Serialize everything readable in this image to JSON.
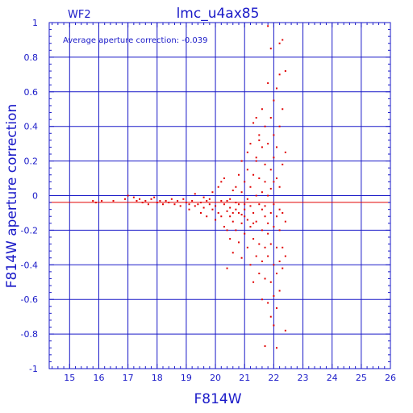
{
  "chart_data": {
    "type": "scatter",
    "title": "lmc_u4ax85",
    "corner_label": "WF2",
    "annotation": "Average aperture correction: -0.039",
    "xlabel": "F814W",
    "ylabel": "F814W aperture correction",
    "xlim": [
      14.3,
      26
    ],
    "ylim": [
      -1,
      1
    ],
    "xticks": [
      15,
      16,
      17,
      18,
      19,
      20,
      21,
      22,
      23,
      24,
      25,
      26
    ],
    "yticks": [
      -1,
      -0.8,
      -0.6,
      -0.4,
      -0.2,
      0,
      0.2,
      0.4,
      0.6,
      0.8,
      1
    ],
    "ytick_labels": [
      "-1",
      "-0.8",
      "-0.6",
      "-0.4",
      "-0.2",
      "0",
      "0.2",
      "0.4",
      "0.6",
      "0.8",
      "1"
    ],
    "grid": true,
    "reference_lines": [
      {
        "y": 0,
        "color": "#1a1ac8"
      },
      {
        "y": -0.039,
        "color": "#e00000"
      }
    ],
    "colors": {
      "axes": "#1a1ac8",
      "points": "#e00000"
    },
    "points": [
      [
        15.8,
        -0.03
      ],
      [
        15.9,
        -0.04
      ],
      [
        16.1,
        -0.03
      ],
      [
        16.5,
        -0.03
      ],
      [
        16.9,
        -0.02
      ],
      [
        17.0,
        0.0
      ],
      [
        17.2,
        -0.01
      ],
      [
        17.3,
        -0.03
      ],
      [
        17.4,
        -0.02
      ],
      [
        17.5,
        -0.04
      ],
      [
        17.6,
        -0.03
      ],
      [
        17.7,
        -0.05
      ],
      [
        17.8,
        -0.02
      ],
      [
        17.9,
        -0.01
      ],
      [
        18.0,
        -0.04
      ],
      [
        18.1,
        -0.03
      ],
      [
        18.2,
        -0.05
      ],
      [
        18.3,
        -0.03
      ],
      [
        18.4,
        -0.04
      ],
      [
        18.5,
        -0.02
      ],
      [
        18.6,
        -0.05
      ],
      [
        18.7,
        -0.03
      ],
      [
        18.8,
        -0.06
      ],
      [
        18.9,
        -0.02
      ],
      [
        19.0,
        -0.04
      ],
      [
        19.1,
        -0.05
      ],
      [
        19.1,
        -0.08
      ],
      [
        19.2,
        -0.03
      ],
      [
        19.3,
        -0.06
      ],
      [
        19.3,
        0.01
      ],
      [
        19.4,
        -0.05
      ],
      [
        19.5,
        -0.04
      ],
      [
        19.5,
        -0.1
      ],
      [
        19.6,
        -0.07
      ],
      [
        19.7,
        -0.03
      ],
      [
        19.7,
        -0.12
      ],
      [
        19.8,
        -0.05
      ],
      [
        19.9,
        -0.08
      ],
      [
        19.9,
        0.02
      ],
      [
        20.0,
        -0.06
      ],
      [
        20.0,
        -0.14
      ],
      [
        20.1,
        0.05
      ],
      [
        20.1,
        -0.1
      ],
      [
        20.2,
        0.08
      ],
      [
        20.2,
        -0.03
      ],
      [
        20.3,
        0.1
      ],
      [
        20.3,
        -0.18
      ],
      [
        20.3,
        -0.05
      ],
      [
        20.4,
        -0.2
      ],
      [
        20.4,
        -0.09
      ],
      [
        20.4,
        -0.42
      ],
      [
        20.5,
        -0.12
      ],
      [
        20.5,
        -0.25
      ],
      [
        20.5,
        -0.02
      ],
      [
        20.6,
        -0.15
      ],
      [
        20.6,
        0.03
      ],
      [
        20.6,
        -0.33
      ],
      [
        20.7,
        -0.08
      ],
      [
        20.7,
        0.05
      ],
      [
        20.7,
        -0.2
      ],
      [
        20.8,
        -0.1
      ],
      [
        20.8,
        0.12
      ],
      [
        20.8,
        -0.27
      ],
      [
        20.9,
        0.02
      ],
      [
        20.9,
        -0.16
      ],
      [
        20.9,
        -0.36
      ],
      [
        20.9,
        0.2
      ],
      [
        21.0,
        -0.05
      ],
      [
        21.0,
        -0.22
      ],
      [
        21.0,
        0.08
      ],
      [
        21.0,
        -0.12
      ],
      [
        21.1,
        0.15
      ],
      [
        21.1,
        -0.3
      ],
      [
        21.1,
        -0.02
      ],
      [
        21.1,
        0.25
      ],
      [
        21.2,
        -0.18
      ],
      [
        21.2,
        0.05
      ],
      [
        21.2,
        -0.4
      ],
      [
        21.2,
        0.3
      ],
      [
        21.3,
        -0.1
      ],
      [
        21.3,
        0.12
      ],
      [
        21.3,
        -0.25
      ],
      [
        21.3,
        0.42
      ],
      [
        21.3,
        -0.5
      ],
      [
        21.4,
        0.0
      ],
      [
        21.4,
        -0.15
      ],
      [
        21.4,
        0.2
      ],
      [
        21.4,
        -0.35
      ],
      [
        21.4,
        0.45
      ],
      [
        21.5,
        -0.05
      ],
      [
        21.5,
        0.1
      ],
      [
        21.5,
        -0.28
      ],
      [
        21.5,
        0.35
      ],
      [
        21.5,
        -0.45
      ],
      [
        21.6,
        0.02
      ],
      [
        21.6,
        -0.2
      ],
      [
        21.6,
        0.28
      ],
      [
        21.6,
        -0.38
      ],
      [
        21.6,
        0.5
      ],
      [
        21.6,
        -0.6
      ],
      [
        21.7,
        0.08
      ],
      [
        21.7,
        -0.12
      ],
      [
        21.7,
        0.18
      ],
      [
        21.7,
        -0.3
      ],
      [
        21.7,
        0.4
      ],
      [
        21.7,
        -0.48
      ],
      [
        21.7,
        -0.87
      ],
      [
        21.8,
        0.0
      ],
      [
        21.8,
        -0.22
      ],
      [
        21.8,
        0.3
      ],
      [
        21.8,
        -0.35
      ],
      [
        21.8,
        -0.62
      ],
      [
        21.8,
        0.65
      ],
      [
        21.8,
        0.98
      ],
      [
        21.9,
        -0.1
      ],
      [
        21.9,
        0.15
      ],
      [
        21.9,
        -0.28
      ],
      [
        21.9,
        0.45
      ],
      [
        21.9,
        -0.5
      ],
      [
        21.9,
        -0.7
      ],
      [
        21.9,
        0.85
      ],
      [
        22.0,
        -0.05
      ],
      [
        22.0,
        0.22
      ],
      [
        22.0,
        -0.18
      ],
      [
        22.0,
        0.35
      ],
      [
        22.0,
        -0.4
      ],
      [
        22.0,
        0.55
      ],
      [
        22.0,
        -0.58
      ],
      [
        22.0,
        -0.75
      ],
      [
        22.1,
        0.1
      ],
      [
        22.1,
        -0.3
      ],
      [
        22.1,
        0.28
      ],
      [
        22.1,
        -0.45
      ],
      [
        22.1,
        0.62
      ],
      [
        22.1,
        -0.65
      ],
      [
        22.1,
        -0.88
      ],
      [
        22.2,
        0.05
      ],
      [
        22.2,
        -0.2
      ],
      [
        22.2,
        0.4
      ],
      [
        22.2,
        -0.38
      ],
      [
        22.2,
        0.7
      ],
      [
        22.2,
        -0.55
      ],
      [
        22.2,
        0.88
      ],
      [
        22.3,
        0.18
      ],
      [
        22.3,
        -0.1
      ],
      [
        22.3,
        0.5
      ],
      [
        22.3,
        -0.3
      ],
      [
        22.3,
        0.9
      ],
      [
        22.3,
        -0.42
      ],
      [
        22.4,
        0.25
      ],
      [
        22.4,
        -0.15
      ],
      [
        22.4,
        0.72
      ],
      [
        22.4,
        -0.35
      ],
      [
        22.4,
        -0.78
      ],
      [
        21.4,
        0.22
      ],
      [
        21.5,
        0.32
      ],
      [
        21.6,
        -0.08
      ],
      [
        21.7,
        -0.06
      ],
      [
        21.8,
        -0.16
      ],
      [
        21.9,
        0.04
      ],
      [
        22.0,
        0.08
      ],
      [
        22.1,
        -0.12
      ],
      [
        22.2,
        -0.08
      ],
      [
        20.5,
        -0.07
      ],
      [
        20.7,
        -0.04
      ],
      [
        20.9,
        -0.11
      ],
      [
        21.0,
        -0.08
      ],
      [
        21.1,
        -0.14
      ],
      [
        21.2,
        -0.06
      ],
      [
        21.3,
        -0.16
      ],
      [
        20.4,
        -0.03
      ],
      [
        20.6,
        -0.1
      ],
      [
        20.8,
        -0.05
      ],
      [
        19.8,
        -0.02
      ],
      [
        19.6,
        -0.01
      ],
      [
        20.2,
        -0.12
      ]
    ]
  }
}
